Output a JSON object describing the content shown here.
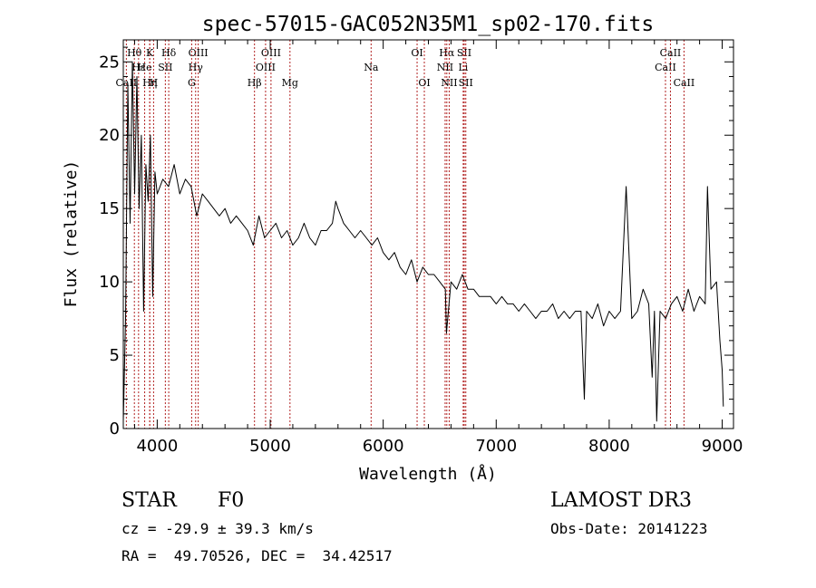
{
  "chart_data": {
    "type": "line",
    "title": "spec-57015-GAC052N35M1_sp02-170.fits",
    "xlabel": "Wavelength (Å)",
    "ylabel": "Flux (relative)",
    "xlim": [
      3700,
      9100
    ],
    "ylim": [
      0,
      26.5
    ],
    "xticks": [
      4000,
      5000,
      6000,
      7000,
      8000,
      9000
    ],
    "yticks": [
      0,
      5,
      10,
      15,
      20,
      25
    ],
    "x_minor_step": 200,
    "y_minor_step": 1,
    "grid": false,
    "series": [
      {
        "name": "spectrum",
        "color": "#000000",
        "x": [
          3700,
          3720,
          3740,
          3760,
          3780,
          3800,
          3820,
          3840,
          3860,
          3880,
          3900,
          3920,
          3940,
          3960,
          3980,
          4000,
          4050,
          4100,
          4150,
          4200,
          4250,
          4300,
          4350,
          4400,
          4450,
          4500,
          4550,
          4600,
          4650,
          4700,
          4750,
          4800,
          4850,
          4900,
          4950,
          5000,
          5050,
          5100,
          5150,
          5200,
          5250,
          5300,
          5350,
          5400,
          5450,
          5500,
          5550,
          5580,
          5600,
          5650,
          5700,
          5750,
          5800,
          5850,
          5900,
          5950,
          6000,
          6050,
          6100,
          6150,
          6200,
          6250,
          6300,
          6350,
          6400,
          6450,
          6500,
          6550,
          6560,
          6600,
          6650,
          6700,
          6750,
          6800,
          6850,
          6900,
          6950,
          7000,
          7050,
          7100,
          7150,
          7200,
          7250,
          7300,
          7350,
          7400,
          7450,
          7500,
          7550,
          7600,
          7650,
          7700,
          7750,
          7780,
          7800,
          7850,
          7900,
          7950,
          8000,
          8050,
          8100,
          8150,
          8200,
          8250,
          8300,
          8350,
          8380,
          8400,
          8420,
          8450,
          8500,
          8550,
          8600,
          8650,
          8700,
          8750,
          8800,
          8850,
          8870,
          8900,
          8950,
          8980,
          9000,
          9010
        ],
        "y": [
          0.5,
          7.5,
          23.5,
          14.0,
          25.0,
          16.0,
          24.0,
          15.0,
          20.0,
          8.0,
          18.0,
          15.5,
          20.0,
          9.0,
          17.5,
          16.0,
          17.0,
          16.5,
          18.0,
          16.0,
          17.0,
          16.5,
          14.5,
          16.0,
          15.5,
          15.0,
          14.5,
          15.0,
          14.0,
          14.5,
          14.0,
          13.5,
          12.5,
          14.5,
          13.0,
          13.5,
          14.0,
          13.0,
          13.5,
          12.5,
          13.0,
          14.0,
          13.0,
          12.5,
          13.5,
          13.5,
          14.0,
          15.5,
          15.0,
          14.0,
          13.5,
          13.0,
          13.5,
          13.0,
          12.5,
          13.0,
          12.0,
          11.5,
          12.0,
          11.0,
          10.5,
          11.5,
          10.0,
          11.0,
          10.5,
          10.5,
          10.0,
          9.5,
          6.5,
          10.0,
          9.5,
          10.5,
          9.5,
          9.5,
          9.0,
          9.0,
          9.0,
          8.5,
          9.0,
          8.5,
          8.5,
          8.0,
          8.5,
          8.0,
          7.5,
          8.0,
          8.0,
          8.5,
          7.5,
          8.0,
          7.5,
          8.0,
          8.0,
          2.0,
          8.0,
          7.5,
          8.5,
          7.0,
          8.0,
          7.5,
          8.0,
          16.5,
          7.5,
          8.0,
          9.5,
          8.5,
          3.5,
          8.0,
          0.5,
          8.0,
          7.5,
          8.5,
          9.0,
          8.0,
          9.5,
          8.0,
          9.0,
          8.5,
          16.5,
          9.5,
          10.0,
          6.0,
          4.0,
          1.5
        ]
      }
    ],
    "lines": [
      {
        "name": "Hθ",
        "x": 3798,
        "row": 1
      },
      {
        "name": "CaII",
        "x": 3727,
        "row": 3
      },
      {
        "name": "Hε",
        "x": 3835,
        "row": 2
      },
      {
        "name": "He",
        "x": 3889,
        "row": 2
      },
      {
        "name": "Hη",
        "x": 3934,
        "row": 3
      },
      {
        "name": "K",
        "x": 3934,
        "row": 1
      },
      {
        "name": "H",
        "x": 3968,
        "row": 3
      },
      {
        "name": "SII",
        "x": 4072,
        "row": 2
      },
      {
        "name": "Hδ",
        "x": 4102,
        "row": 1
      },
      {
        "name": "OIII",
        "x": 4363,
        "row": 1
      },
      {
        "name": "Hγ",
        "x": 4340,
        "row": 2
      },
      {
        "name": "G",
        "x": 4305,
        "row": 3
      },
      {
        "name": "Hβ",
        "x": 4861,
        "row": 3
      },
      {
        "name": "OIII",
        "x": 4959,
        "row": 2
      },
      {
        "name": "OIII",
        "x": 5007,
        "row": 1
      },
      {
        "name": "Mg",
        "x": 5175,
        "row": 3
      },
      {
        "name": "Na",
        "x": 5893,
        "row": 2
      },
      {
        "name": "OI",
        "x": 6300,
        "row": 1
      },
      {
        "name": "OI",
        "x": 6364,
        "row": 3
      },
      {
        "name": "Hα",
        "x": 6563,
        "row": 1
      },
      {
        "name": "NII",
        "x": 6548,
        "row": 2
      },
      {
        "name": "NII",
        "x": 6584,
        "row": 3
      },
      {
        "name": "SII",
        "x": 6717,
        "row": 1
      },
      {
        "name": "Li",
        "x": 6708,
        "row": 2
      },
      {
        "name": "SII",
        "x": 6731,
        "row": 3
      },
      {
        "name": "CaII",
        "x": 8498,
        "row": 2
      },
      {
        "name": "CaII",
        "x": 8542,
        "row": 1
      },
      {
        "name": "CaII",
        "x": 8662,
        "row": 3
      }
    ]
  },
  "info": {
    "class_label": "STAR",
    "subclass_label": "F0",
    "survey_label": "LAMOST DR3",
    "redshift_text": "cz = -29.9 ± 39.3 km/s",
    "obs_date_text": "Obs-Date: 20141223",
    "coords_text": "RA =  49.70526, DEC =  34.42517"
  }
}
